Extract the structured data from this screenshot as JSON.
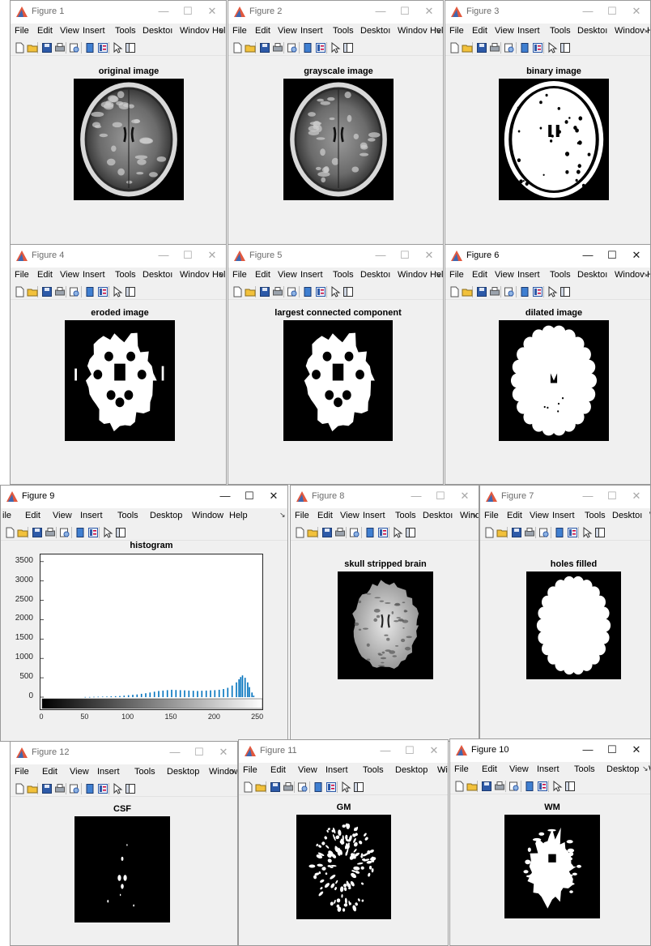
{
  "menus": {
    "full": [
      "File",
      "Edit",
      "View",
      "Insert",
      "Tools",
      "Desktop",
      "Window",
      "Help"
    ],
    "narrow": [
      "File",
      "Edit",
      "View",
      "Insert",
      "Tools",
      "Desktoı",
      "Windov",
      "Help"
    ],
    "cut_left": [
      "ile",
      "Edit",
      "View",
      "Insert",
      "Tools",
      "Desktop",
      "Window",
      "Help"
    ],
    "cut_right": [
      "File",
      "Edit",
      "View",
      "Insert",
      "Tools",
      "Desktoı",
      "Windov",
      "Hel"
    ],
    "overflow_arrow": "↘"
  },
  "window_buttons": {
    "minimize": "—",
    "maximize": "☐",
    "close": "✕"
  },
  "toolbar_icons": [
    "new-figure-icon",
    "open-file-icon",
    "save-icon",
    "print-icon",
    "print-preview-icon",
    "link-plot-icon",
    "insert-colorbar-icon",
    "edit-plot-arrow-icon",
    "show-plot-tools-icon"
  ],
  "colors": {
    "matlab_icon": "#e2583e",
    "window_bg": "#f0f0f0",
    "histogram_bars": "#0072bd"
  },
  "figures": [
    {
      "title": "Figure 1",
      "axes_title": "original image",
      "image": "original-mri"
    },
    {
      "title": "Figure 2",
      "axes_title": "grayscale image",
      "image": "grayscale-mri"
    },
    {
      "title": "Figure 3",
      "axes_title": "binary image",
      "image": "binary-mask"
    },
    {
      "title": "Figure 4",
      "axes_title": "eroded image",
      "image": "eroded-mask"
    },
    {
      "title": "Figure 5",
      "axes_title": "largest connected component",
      "image": "largest-component-mask"
    },
    {
      "title": "Figure 6",
      "axes_title": "dilated image",
      "image": "dilated-mask"
    },
    {
      "title": "Figure 9",
      "axes_title": "histogram",
      "image": "histogram-plot"
    },
    {
      "title": "Figure 8",
      "axes_title": "skull stripped brain",
      "image": "skull-stripped-brain"
    },
    {
      "title": "Figure 7",
      "axes_title": "holes filled",
      "image": "filled-mask"
    },
    {
      "title": "Figure 12",
      "axes_title": "CSF",
      "image": "csf-mask"
    },
    {
      "title": "Figure 11",
      "axes_title": "GM",
      "image": "gm-mask"
    },
    {
      "title": "Figure 10",
      "axes_title": "WM",
      "image": "wm-mask"
    }
  ],
  "chart_data": {
    "type": "bar",
    "title": "histogram",
    "xlabel": "",
    "ylabel": "",
    "xlim": [
      0,
      255
    ],
    "ylim": [
      0,
      3600
    ],
    "xticks": [
      0,
      50,
      100,
      150,
      200,
      250
    ],
    "yticks": [
      0,
      500,
      1000,
      1500,
      2000,
      2500,
      3000,
      3500
    ],
    "grid": false,
    "colorbar": "grayscale 0-255 below x-axis",
    "x": [
      50,
      55,
      60,
      65,
      70,
      75,
      80,
      85,
      90,
      95,
      100,
      105,
      110,
      115,
      120,
      125,
      130,
      135,
      140,
      145,
      150,
      155,
      160,
      165,
      170,
      175,
      180,
      185,
      190,
      195,
      200,
      205,
      210,
      215,
      220,
      225,
      228,
      230,
      232,
      235,
      238,
      240,
      243,
      245
    ],
    "values": [
      4,
      5,
      8,
      10,
      12,
      15,
      20,
      25,
      30,
      40,
      50,
      60,
      70,
      85,
      100,
      120,
      140,
      160,
      170,
      180,
      190,
      185,
      180,
      175,
      170,
      165,
      160,
      165,
      170,
      175,
      180,
      190,
      210,
      240,
      300,
      380,
      460,
      520,
      560,
      500,
      380,
      260,
      120,
      40
    ]
  }
}
